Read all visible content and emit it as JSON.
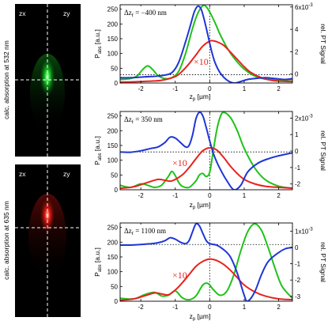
{
  "heatmaps": [
    {
      "left_label": "zx",
      "right_label": "zy",
      "side_label": "calc. absorption at 532 nm",
      "color": "#19e62a"
    },
    {
      "left_label": "zx",
      "right_label": "zy",
      "side_label": "calc. absorption at 635 nm",
      "color": "#ff2216"
    }
  ],
  "colors": {
    "green": "#1fc21a",
    "red": "#e8231e",
    "blue": "#1f35d6",
    "axis": "#000000"
  },
  "chart_data": [
    {
      "type": "line",
      "annotation": "Δz",
      "annotation_sub": "f",
      "annotation_value": " = −400 nm",
      "factor_label": "×10",
      "xlabel": "z",
      "xlabel_sub": "p",
      "xlabel_unit": " [µm]",
      "ylabel": "P",
      "ylabel_sub": "abs",
      "ylabel_unit": " [a.u.]",
      "y2label": "rel. PT Signal",
      "y2_exponent": "6x10",
      "y2_exponent_sup": "-3",
      "xlim": [
        -2.6,
        2.4
      ],
      "ylim": [
        0,
        265
      ],
      "y2lim": [
        -0.8,
        6.2
      ],
      "xticks": [
        -2,
        -1,
        0,
        1,
        2
      ],
      "yticks": [
        0,
        50,
        100,
        150,
        200,
        250
      ],
      "y2ticks": [
        0,
        2,
        4,
        6
      ],
      "y2ticklabels": [
        "0",
        "2",
        "4",
        "6x10"
      ],
      "hline_y": 28,
      "vline_x": 0,
      "series": [
        {
          "color": "green",
          "axis": "left",
          "x": [
            -2.6,
            -2.3,
            -2.1,
            -1.95,
            -1.8,
            -1.65,
            -1.5,
            -1.3,
            -1.1,
            -0.9,
            -0.7,
            -0.5,
            -0.35,
            -0.2,
            -0.1,
            0.0,
            0.15,
            0.3,
            0.5,
            0.7,
            0.9,
            1.1,
            1.3,
            1.5,
            1.8,
            2.1,
            2.4
          ],
          "y": [
            12,
            15,
            25,
            45,
            58,
            45,
            25,
            15,
            18,
            40,
            100,
            185,
            235,
            262,
            258,
            240,
            205,
            165,
            120,
            85,
            58,
            38,
            24,
            16,
            11,
            10,
            12
          ]
        },
        {
          "color": "red",
          "axis": "left",
          "x": [
            -2.6,
            -2.2,
            -1.8,
            -1.4,
            -1.0,
            -0.8,
            -0.6,
            -0.4,
            -0.2,
            0.0,
            0.1,
            0.2,
            0.4,
            0.6,
            0.8,
            1.0,
            1.2,
            1.5,
            1.8,
            2.1,
            2.4
          ],
          "y": [
            3,
            4,
            6,
            9,
            22,
            40,
            65,
            95,
            125,
            142,
            143,
            140,
            128,
            105,
            80,
            55,
            35,
            18,
            9,
            6,
            5
          ]
        },
        {
          "color": "blue",
          "axis": "left",
          "x": [
            -2.6,
            -2.3,
            -2.0,
            -1.7,
            -1.4,
            -1.1,
            -0.9,
            -0.7,
            -0.55,
            -0.45,
            -0.35,
            -0.25,
            -0.15,
            -0.05,
            0.05,
            0.15,
            0.3,
            0.5,
            0.7,
            0.9,
            1.1,
            1.3,
            1.6,
            1.9,
            2.2,
            2.4
          ],
          "y": [
            18,
            18,
            20,
            22,
            25,
            35,
            70,
            140,
            200,
            240,
            260,
            250,
            210,
            160,
            110,
            70,
            35,
            10,
            0,
            5,
            12,
            15,
            18,
            15,
            12,
            15
          ]
        }
      ]
    },
    {
      "type": "line",
      "annotation": "Δz",
      "annotation_sub": "f",
      "annotation_value": " = 350 nm",
      "factor_label": "×10",
      "xlabel": "z",
      "xlabel_sub": "p",
      "xlabel_unit": " [µm]",
      "ylabel": "P",
      "ylabel_sub": "abs",
      "ylabel_unit": " [a.u.]",
      "y2label": "rel. PT Signal",
      "y2_exponent": "2x10",
      "y2_exponent_sup": "-3",
      "xlim": [
        -2.6,
        2.4
      ],
      "ylim": [
        0,
        265
      ],
      "y2lim": [
        -2.35,
        2.4
      ],
      "xticks": [
        -2,
        -1,
        0,
        1,
        2
      ],
      "yticks": [
        0,
        50,
        100,
        150,
        200,
        250
      ],
      "y2ticks": [
        -2,
        -1,
        0,
        1,
        2
      ],
      "y2ticklabels": [
        "-2",
        "-1",
        "0",
        "1",
        "2x10"
      ],
      "hline_y": 128,
      "vline_x": 0,
      "series": [
        {
          "color": "green",
          "axis": "left",
          "x": [
            -2.6,
            -2.3,
            -2.0,
            -1.8,
            -1.6,
            -1.4,
            -1.2,
            -1.1,
            -1.0,
            -0.9,
            -0.8,
            -0.6,
            -0.4,
            -0.3,
            -0.2,
            -0.1,
            0.0,
            0.1,
            0.2,
            0.3,
            0.4,
            0.6,
            0.8,
            1.0,
            1.3,
            1.6,
            2.0,
            2.4
          ],
          "y": [
            15,
            8,
            20,
            15,
            8,
            15,
            45,
            62,
            48,
            25,
            12,
            8,
            30,
            50,
            55,
            45,
            60,
            130,
            200,
            245,
            262,
            245,
            200,
            140,
            75,
            35,
            12,
            5
          ]
        },
        {
          "color": "red",
          "axis": "left",
          "x": [
            -2.6,
            -2.2,
            -1.8,
            -1.5,
            -1.3,
            -1.1,
            -0.8,
            -0.6,
            -0.4,
            -0.2,
            0.0,
            0.2,
            0.4,
            0.6,
            0.8,
            1.0,
            1.3,
            1.6,
            2.0,
            2.4
          ],
          "y": [
            5,
            10,
            25,
            35,
            32,
            30,
            50,
            75,
            105,
            132,
            142,
            135,
            110,
            80,
            55,
            35,
            20,
            12,
            8,
            5
          ]
        },
        {
          "color": "blue",
          "axis": "left",
          "x": [
            -2.6,
            -2.3,
            -2.0,
            -1.7,
            -1.5,
            -1.3,
            -1.15,
            -1.0,
            -0.85,
            -0.7,
            -0.6,
            -0.5,
            -0.4,
            -0.3,
            -0.2,
            -0.1,
            0.0,
            0.1,
            0.2,
            0.35,
            0.5,
            0.7,
            0.9,
            1.1,
            1.4,
            1.7,
            2.0,
            2.4
          ],
          "y": [
            128,
            127,
            132,
            140,
            145,
            160,
            178,
            175,
            160,
            145,
            150,
            185,
            240,
            262,
            250,
            210,
            165,
            125,
            95,
            60,
            30,
            0,
            15,
            60,
            90,
            105,
            115,
            125
          ]
        }
      ]
    },
    {
      "type": "line",
      "annotation": "Δz",
      "annotation_sub": "f",
      "annotation_value": " = 1100 nm",
      "factor_label": "×10",
      "xlabel": "z",
      "xlabel_sub": "p",
      "xlabel_unit": " [µm]",
      "ylabel": "P",
      "ylabel_sub": "abs",
      "ylabel_unit": " [a.u.]",
      "y2label": "rel. PT Signal",
      "y2_exponent": "1x10",
      "y2_exponent_sup": "-3",
      "xlim": [
        -2.6,
        2.4
      ],
      "ylim": [
        0,
        265
      ],
      "y2lim": [
        -3.3,
        1.5
      ],
      "xticks": [
        -2,
        -1,
        0,
        1,
        2
      ],
      "yticks": [
        0,
        50,
        100,
        150,
        200,
        250
      ],
      "y2ticks": [
        -3,
        -2,
        -1,
        0,
        1
      ],
      "y2ticklabels": [
        "-3",
        "-2",
        "-1",
        "0",
        "1x10"
      ],
      "hline_y": 192,
      "vline_x": 0,
      "series": [
        {
          "color": "green",
          "axis": "left",
          "x": [
            -2.6,
            -2.2,
            -1.9,
            -1.6,
            -1.4,
            -1.2,
            -1.0,
            -0.8,
            -0.6,
            -0.4,
            -0.2,
            -0.05,
            0.1,
            0.3,
            0.5,
            0.7,
            0.9,
            1.1,
            1.3,
            1.5,
            1.7,
            1.9,
            2.1,
            2.4
          ],
          "y": [
            10,
            8,
            22,
            30,
            18,
            20,
            35,
            12,
            5,
            18,
            55,
            60,
            40,
            20,
            35,
            90,
            170,
            235,
            262,
            240,
            180,
            110,
            50,
            10
          ]
        },
        {
          "color": "red",
          "axis": "left",
          "x": [
            -2.6,
            -2.2,
            -1.9,
            -1.6,
            -1.4,
            -1.2,
            -1.0,
            -0.8,
            -0.6,
            -0.4,
            -0.2,
            0.0,
            0.2,
            0.4,
            0.6,
            0.8,
            1.0,
            1.3,
            1.6,
            2.0,
            2.4
          ],
          "y": [
            3,
            8,
            18,
            28,
            25,
            22,
            38,
            62,
            90,
            118,
            135,
            143,
            138,
            125,
            105,
            80,
            55,
            32,
            18,
            8,
            5
          ]
        },
        {
          "color": "blue",
          "axis": "left",
          "x": [
            -2.6,
            -2.3,
            -2.0,
            -1.7,
            -1.5,
            -1.3,
            -1.15,
            -1.0,
            -0.85,
            -0.7,
            -0.6,
            -0.5,
            -0.4,
            -0.3,
            -0.2,
            -0.1,
            0.0,
            0.2,
            0.4,
            0.6,
            0.8,
            1.0,
            1.1,
            1.3,
            1.5,
            1.7,
            2.0,
            2.2,
            2.4
          ],
          "y": [
            190,
            190,
            192,
            195,
            198,
            205,
            215,
            210,
            200,
            195,
            205,
            235,
            262,
            255,
            230,
            205,
            195,
            190,
            175,
            150,
            95,
            20,
            0,
            30,
            90,
            135,
            165,
            178,
            182
          ]
        }
      ]
    }
  ]
}
